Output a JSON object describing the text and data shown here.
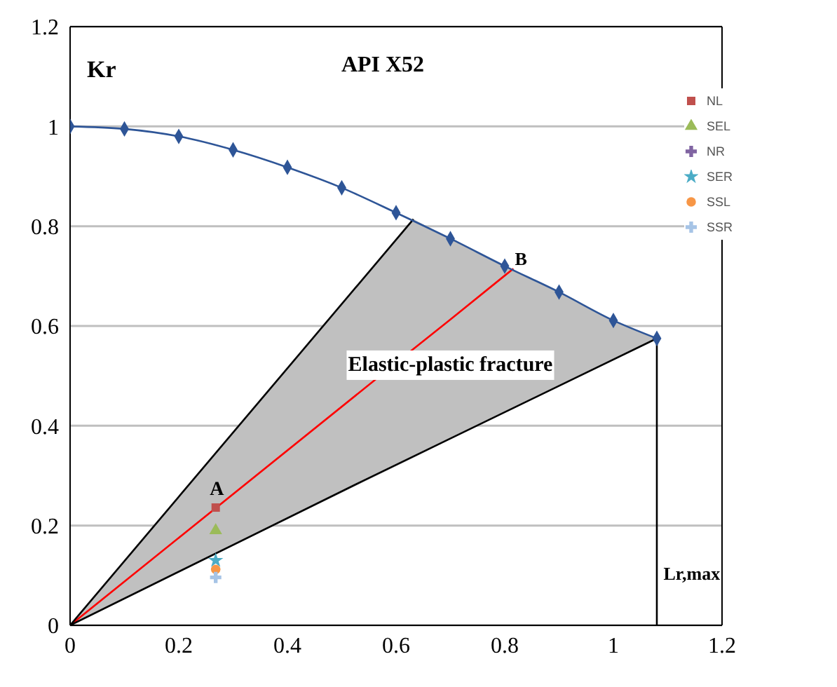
{
  "chart_data": {
    "type": "scatter",
    "title": "API X52",
    "ylabel": "Kr",
    "xlim": [
      0,
      1.2
    ],
    "xticks": [
      0,
      0.2,
      0.4,
      0.6,
      0.8,
      1,
      1.2
    ],
    "ylim": [
      0,
      1.2
    ],
    "yticks": [
      0,
      0.2,
      0.4,
      0.6,
      0.8,
      1,
      1.2
    ],
    "grid": "y",
    "legend": "top right",
    "annotations": [
      "A",
      "B",
      "Elastic-plastic fracture",
      "Lr,max"
    ],
    "series": [
      {
        "type": "line",
        "color": "#ff0000",
        "marker": "none",
        "x": [
          0,
          0.632,
          0.7,
          0.8,
          0.816,
          0.9,
          1,
          1.08
        ],
        "values": [
          0,
          0.554,
          0.613,
          0.701,
          0.715,
          null,
          null,
          null
        ],
        "lower": [
          0,
          0.336,
          0.373,
          0.426,
          0.434,
          0.479,
          0.532,
          0.575
        ],
        "upper": [
          0,
          0.814,
          0.775,
          0.72,
          0.712,
          0.668,
          0.611,
          0.575
        ]
      },
      {
        "type": "line",
        "color": "#000000",
        "marker": "none",
        "x": [
          1.08,
          1.08
        ],
        "values": [
          0,
          0.575
        ]
      },
      {
        "type": "line",
        "color": "#000000",
        "marker": "none",
        "x": [
          0,
          0.54,
          1.08
        ],
        "values": [
          0,
          0.29,
          0.575
        ]
      },
      {
        "type": "line",
        "color": "#000000",
        "marker": "none",
        "x": [
          0,
          0.632
        ],
        "values": [
          0,
          0.814
        ]
      },
      {
        "type": "line",
        "color": "#2e5597",
        "marker": "diamond",
        "x": [
          0,
          0.1,
          0.2,
          0.3,
          0.4,
          0.5,
          0.6,
          0.7,
          0.8,
          0.9,
          1,
          1.08
        ],
        "values": [
          1,
          0.995,
          0.98,
          0.953,
          0.918,
          0.877,
          0.827,
          0.775,
          0.72,
          0.668,
          0.611,
          0.575
        ]
      },
      {
        "name": "NL",
        "color": "#c0504d",
        "marker": "square",
        "x": [
          0.268
        ],
        "values": [
          0.236
        ]
      },
      {
        "name": "SEL",
        "color": "#9bbb59",
        "marker": "triangle",
        "x": [
          0.268
        ],
        "values": [
          0.19
        ]
      },
      {
        "name": "NR",
        "color": "#8064a2",
        "marker": "cross",
        "x": [
          null
        ],
        "values": [
          null
        ]
      },
      {
        "name": "SER",
        "color": "#4bacc6",
        "marker": "star",
        "x": [
          0.268
        ],
        "values": [
          0.13
        ]
      },
      {
        "name": "SSL",
        "color": "#f79646",
        "marker": "circle",
        "x": [
          0.268
        ],
        "values": [
          0.112
        ]
      },
      {
        "name": "SSR",
        "color": "#a6c4e6",
        "marker": "cross",
        "x": [
          0.268
        ],
        "values": [
          0.096
        ]
      }
    ]
  }
}
